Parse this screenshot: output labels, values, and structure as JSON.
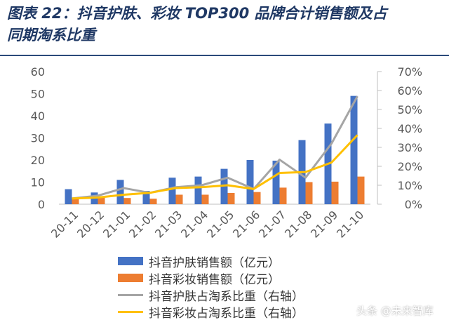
{
  "title_lines": [
    "图表 22：抖音护肤、彩妆 TOP300 品牌合计销售额及占",
    "同期淘系比重"
  ],
  "chart_data": {
    "type": "bar+line",
    "categories": [
      "20-11",
      "20-12",
      "21-01",
      "21-02",
      "21-03",
      "21-04",
      "21-05",
      "21-06",
      "21-07",
      "21-08",
      "21-09",
      "21-10"
    ],
    "series": [
      {
        "name": "抖音护肤销售额（亿元）",
        "kind": "bar",
        "axis": "left",
        "color": "#4472c4",
        "values": [
          6.8,
          5.3,
          11,
          6,
          12,
          12.5,
          16,
          20,
          19.7,
          29,
          36.5,
          49
        ]
      },
      {
        "name": "抖音彩妆销售额（亿元）",
        "kind": "bar",
        "axis": "left",
        "color": "#ed7d31",
        "values": [
          2.6,
          3,
          2.8,
          2.5,
          4.3,
          4.3,
          5.1,
          5.5,
          7.5,
          10,
          10.2,
          12.5
        ]
      },
      {
        "name": "抖音护肤占淘系比重（右轴）",
        "kind": "line",
        "axis": "right",
        "color": "#a5a5a5",
        "values": [
          0.03,
          0.045,
          0.085,
          0.06,
          0.09,
          0.1,
          0.14,
          0.08,
          0.235,
          0.14,
          0.32,
          0.57
        ]
      },
      {
        "name": "抖音彩妆占淘系比重（右轴）",
        "kind": "line",
        "axis": "right",
        "color": "#ffc000",
        "values": [
          0.03,
          0.035,
          0.05,
          0.06,
          0.085,
          0.09,
          0.1,
          0.08,
          0.165,
          0.17,
          0.22,
          0.365
        ]
      }
    ],
    "y_left": {
      "min": 0,
      "max": 60,
      "ticks": [
        0,
        10,
        20,
        30,
        40,
        50,
        60
      ]
    },
    "y_right": {
      "min": 0,
      "max": 0.7,
      "ticks": [
        "0%",
        "10%",
        "20%",
        "30%",
        "40%",
        "50%",
        "60%",
        "70%"
      ]
    },
    "legend_position": "bottom"
  },
  "watermark": "头条 @未来智库"
}
